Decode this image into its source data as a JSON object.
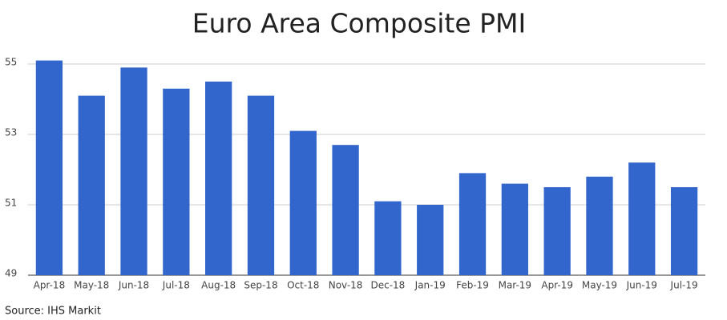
{
  "chart_data": {
    "type": "bar",
    "title": "Euro Area Composite PMI",
    "categories": [
      "Apr-18",
      "May-18",
      "Jun-18",
      "Jul-18",
      "Aug-18",
      "Sep-18",
      "Oct-18",
      "Nov-18",
      "Dec-18",
      "Jan-19",
      "Feb-19",
      "Mar-19",
      "Apr-19",
      "May-19",
      "Jun-19",
      "Jul-19"
    ],
    "values": [
      55.1,
      54.1,
      54.9,
      54.3,
      54.5,
      54.1,
      53.1,
      52.7,
      51.1,
      51.0,
      51.9,
      51.6,
      51.5,
      51.8,
      52.2,
      51.5
    ],
    "color": "#3366cc",
    "ylim": [
      49,
      55
    ],
    "yticks": [
      49,
      51,
      53,
      55
    ],
    "grid": true,
    "source": "Source: IHS Markit"
  }
}
